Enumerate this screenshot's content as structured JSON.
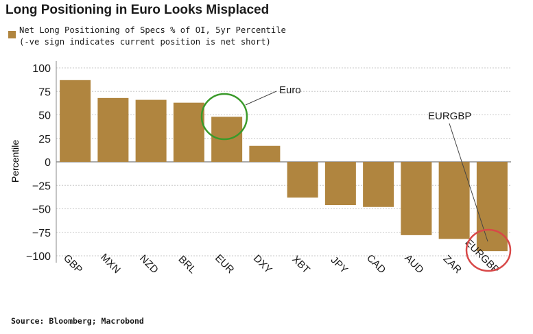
{
  "title": "Long Positioning in Euro Looks Misplaced",
  "source": "Source: Bloomberg; Macrobond",
  "colors": {
    "bar": "#b0853f",
    "grid": "#c8c8c8",
    "euro_circle": "#3a9a2a",
    "eurgbp_circle": "#d84848",
    "text": "#1a1a1a"
  },
  "chart_data": {
    "type": "bar",
    "title": "Long Positioning in Euro Looks Misplaced",
    "legend": [
      {
        "name": "Net Long Positioning of Specs % of OI, 5yr Percentile",
        "note": "(-ve sign indicates current position is net short)"
      }
    ],
    "legend_placement": "top-left",
    "ylabel": "Percentile",
    "xlabel": "",
    "ylim": [
      -100,
      100
    ],
    "yticks": [
      100,
      75,
      50,
      25,
      0,
      -25,
      -50,
      -75,
      -100
    ],
    "grid": true,
    "categories": [
      "GBP",
      "MXN",
      "NZD",
      "BRL",
      "EUR",
      "DXY",
      "XBT",
      "JPY",
      "CAD",
      "AUD",
      "ZAR",
      "EURGBP"
    ],
    "values": [
      87,
      68,
      66,
      63,
      48,
      17,
      -38,
      -46,
      -48,
      -78,
      -82,
      -95
    ],
    "annotations": [
      {
        "text": "Euro",
        "target": "EUR",
        "marker": "circle",
        "color": "green"
      },
      {
        "text": "EURGBP",
        "target": "EURGBP",
        "marker": "circle",
        "color": "red"
      }
    ]
  }
}
